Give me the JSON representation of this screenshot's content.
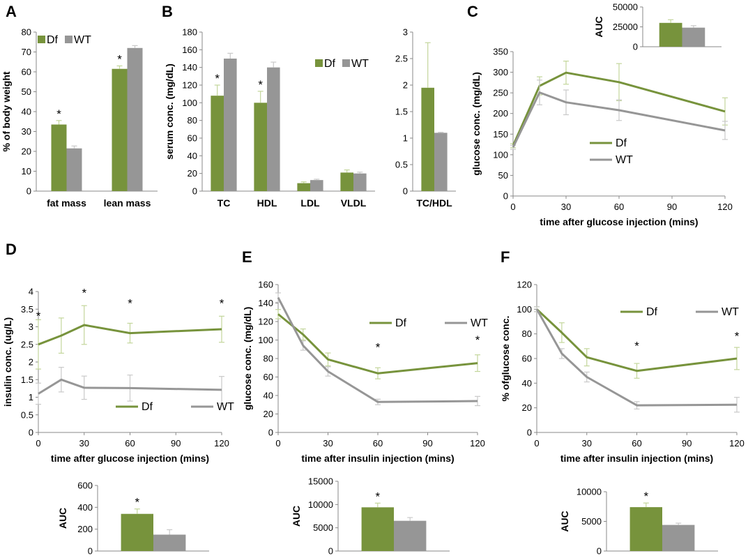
{
  "colors": {
    "df": "#77933c",
    "wt": "#969696",
    "err_df": "#c3d69b",
    "err_wt": "#c9c9c9"
  },
  "chart_data": [
    {
      "id": "A",
      "type": "bar",
      "letter": "A",
      "categories": [
        "fat mass",
        "lean mass"
      ],
      "series": [
        {
          "name": "Df",
          "values": [
            33.5,
            61.5
          ],
          "err": [
            2,
            1.5
          ]
        },
        {
          "name": "WT",
          "values": [
            21.5,
            72
          ],
          "err": [
            1.2,
            1.2
          ]
        }
      ],
      "ylabel": "% of body weight",
      "ylim": [
        0,
        80
      ],
      "yticks": [
        0,
        10,
        20,
        30,
        40,
        50,
        60,
        70,
        80
      ],
      "stars": [
        "*",
        "*"
      ],
      "legend": "top-left"
    },
    {
      "id": "B1",
      "type": "bar",
      "letter": "B",
      "categories": [
        "TC",
        "HDL",
        "LDL",
        "VLDL"
      ],
      "series": [
        {
          "name": "Df",
          "values": [
            108,
            100,
            9,
            21
          ],
          "err": [
            12,
            13,
            1.5,
            3
          ]
        },
        {
          "name": "WT",
          "values": [
            150,
            140,
            12.5,
            20
          ],
          "err": [
            6,
            6,
            1,
            1.5
          ]
        }
      ],
      "ylabel": "serum conc. (mg/dL)",
      "ylim": [
        0,
        180
      ],
      "yticks": [
        0,
        20,
        40,
        60,
        80,
        100,
        120,
        140,
        160,
        180
      ],
      "stars": [
        "*",
        "*",
        "",
        ""
      ],
      "legend": "top-right"
    },
    {
      "id": "B2",
      "type": "bar",
      "categories": [
        "TC/HDL"
      ],
      "series": [
        {
          "name": "Df",
          "values": [
            1.95
          ],
          "err": [
            0.85
          ]
        },
        {
          "name": "WT",
          "values": [
            1.1
          ],
          "err": [
            0.01
          ]
        }
      ],
      "ylim": [
        0,
        3
      ],
      "yticks": [
        0,
        0.5,
        1,
        1.5,
        2,
        2.5,
        3
      ]
    },
    {
      "id": "C",
      "type": "line",
      "letter": "C",
      "x": [
        0,
        15,
        30,
        60,
        120
      ],
      "series": [
        {
          "name": "Df",
          "values": [
            122,
            267,
            299,
            276,
            205
          ],
          "err": [
            5,
            22,
            28,
            45,
            33
          ]
        },
        {
          "name": "WT",
          "values": [
            118,
            251,
            227,
            208,
            159
          ],
          "err": [
            5,
            30,
            30,
            25,
            22
          ]
        }
      ],
      "xlabel": "time after glucose injection (mins)",
      "ylabel": "glucose conc. (mg/dL)",
      "xlim": [
        0,
        120
      ],
      "xticks": [
        0,
        30,
        60,
        90,
        120
      ],
      "ylim": [
        0,
        350
      ],
      "yticks": [
        0,
        50,
        100,
        150,
        200,
        250,
        300,
        350
      ],
      "legend": "center-left",
      "inset": {
        "type": "bar",
        "ylabel": "AUC",
        "ylim": [
          0,
          50000
        ],
        "yticks": [
          0,
          25000,
          50000
        ],
        "series": [
          {
            "name": "Df",
            "values": [
              30000
            ],
            "err": [
              4000
            ]
          },
          {
            "name": "WT",
            "values": [
              24000
            ],
            "err": [
              2500
            ]
          }
        ]
      }
    },
    {
      "id": "D",
      "type": "line",
      "letter": "D",
      "x": [
        0,
        15,
        30,
        60,
        120
      ],
      "series": [
        {
          "name": "Df",
          "values": [
            2.5,
            2.75,
            3.05,
            2.82,
            2.93
          ],
          "err": [
            0.7,
            0.5,
            0.55,
            0.28,
            0.37
          ]
        },
        {
          "name": "WT",
          "values": [
            1.1,
            1.5,
            1.27,
            1.26,
            1.21
          ],
          "err": [
            0.3,
            0.35,
            0.33,
            0.37,
            0.38
          ]
        }
      ],
      "xlabel": "time after glucose injection (mins)",
      "ylabel": "insulin conc. (ug/L)",
      "xlim": [
        0,
        120
      ],
      "xticks": [
        0,
        30,
        60,
        90,
        120
      ],
      "ylim": [
        0,
        4
      ],
      "yticks": [
        0,
        0.5,
        1,
        1.5,
        2,
        2.5,
        3,
        3.5,
        4
      ],
      "stars": [
        {
          "x": 0,
          "y": 3.2,
          "label": "*"
        },
        {
          "x": 30,
          "y": 3.85,
          "label": "*"
        },
        {
          "x": 60,
          "y": 3.55,
          "label": "*"
        },
        {
          "x": 120,
          "y": 3.55,
          "label": "*"
        }
      ],
      "legend": "bottom-right",
      "inset": {
        "type": "bar",
        "ylabel": "AUC",
        "ylim": [
          0,
          600
        ],
        "yticks": [
          0,
          200,
          400,
          600
        ],
        "series": [
          {
            "name": "Df",
            "values": [
              340
            ],
            "err": [
              45
            ]
          },
          {
            "name": "WT",
            "values": [
              150
            ],
            "err": [
              45
            ]
          }
        ],
        "stars": [
          "*"
        ]
      }
    },
    {
      "id": "E",
      "type": "line",
      "letter": "E",
      "x": [
        0,
        15,
        30,
        60,
        120
      ],
      "series": [
        {
          "name": "Df",
          "values": [
            128,
            106,
            79,
            64,
            75
          ],
          "err": [
            5,
            6,
            7,
            6,
            9
          ]
        },
        {
          "name": "WT",
          "values": [
            146,
            94,
            66,
            33,
            34
          ],
          "err": [
            5,
            5,
            5,
            3,
            5
          ]
        }
      ],
      "xlabel": "time after insulin injection (mins)",
      "ylabel": "glucose conc. (mg/dL)",
      "xlim": [
        0,
        120
      ],
      "xticks": [
        0,
        30,
        60,
        90,
        120
      ],
      "ylim": [
        0,
        160
      ],
      "yticks": [
        0,
        20,
        40,
        60,
        80,
        100,
        120,
        140,
        160
      ],
      "stars": [
        {
          "x": 60,
          "y": 88,
          "label": "*"
        },
        {
          "x": 120,
          "y": 96,
          "label": "*"
        }
      ],
      "legend": "top-right",
      "inset": {
        "type": "bar",
        "ylabel": "AUC",
        "ylim": [
          0,
          15000
        ],
        "yticks": [
          0,
          5000,
          10000,
          15000
        ],
        "series": [
          {
            "name": "Df",
            "values": [
              9400
            ],
            "err": [
              900
            ]
          },
          {
            "name": "WT",
            "values": [
              6500
            ],
            "err": [
              700
            ]
          }
        ],
        "stars": [
          "*"
        ]
      }
    },
    {
      "id": "F",
      "type": "line",
      "letter": "F",
      "x": [
        0,
        15,
        30,
        60,
        120
      ],
      "series": [
        {
          "name": "Df",
          "values": [
            100,
            81,
            61,
            50,
            60
          ],
          "err": [
            2,
            8,
            7,
            6,
            9
          ]
        },
        {
          "name": "WT",
          "values": [
            100,
            64,
            45,
            22,
            22.5
          ],
          "err": [
            2,
            4,
            4,
            3,
            6
          ]
        }
      ],
      "xlabel": "time after insulin injection (mins)",
      "ylabel": "% ofglucose conc.",
      "xlim": [
        0,
        120
      ],
      "xticks": [
        0,
        30,
        60,
        90,
        120
      ],
      "ylim": [
        0,
        120
      ],
      "yticks": [
        0,
        20,
        40,
        60,
        80,
        100,
        120
      ],
      "stars": [
        {
          "x": 60,
          "y": 67,
          "label": "*"
        },
        {
          "x": 120,
          "y": 75,
          "label": "*"
        }
      ],
      "legend": "top-right",
      "inset": {
        "type": "bar",
        "ylabel": "AUC",
        "ylim": [
          0,
          10000
        ],
        "yticks": [
          0,
          5000,
          10000
        ],
        "series": [
          {
            "name": "Df",
            "values": [
              7400
            ],
            "err": [
              700
            ]
          },
          {
            "name": "WT",
            "values": [
              4400
            ],
            "err": [
              300
            ]
          }
        ],
        "stars": [
          "*"
        ]
      }
    }
  ]
}
